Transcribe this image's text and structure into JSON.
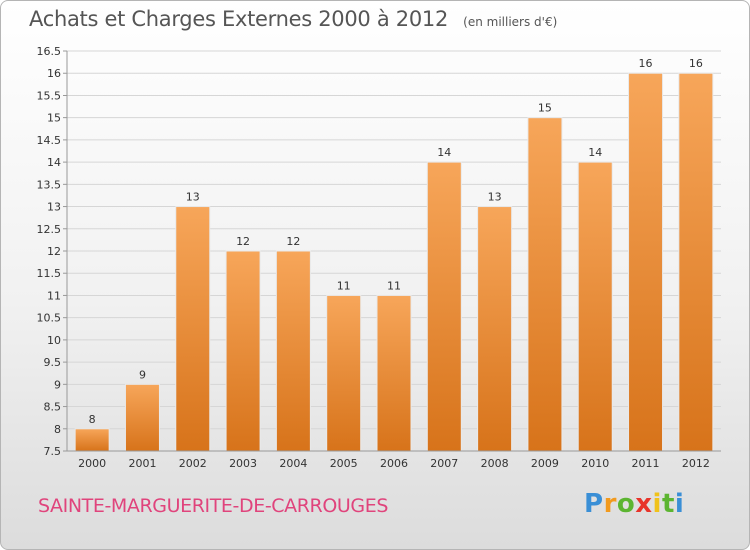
{
  "header": {
    "title": "Achats et Charges Externes 2000 à 2012",
    "unit": "(en milliers d'€)"
  },
  "footer": {
    "commune": "SAINTE-MARGUERITE-DE-CARROUGES",
    "logo_text": "Proxiti"
  },
  "colors": {
    "bar_top": "#f7a65a",
    "bar_bottom": "#d7731a",
    "commune_text": "#e0447c"
  },
  "chart_data": {
    "type": "bar",
    "title": "Achats et Charges Externes 2000 à 2012",
    "subtitle": "(en milliers d'€)",
    "xlabel": "",
    "ylabel": "",
    "categories": [
      "2000",
      "2001",
      "2002",
      "2003",
      "2004",
      "2005",
      "2006",
      "2007",
      "2008",
      "2009",
      "2010",
      "2011",
      "2012"
    ],
    "values": [
      8,
      9,
      13,
      12,
      12,
      11,
      11,
      14,
      13,
      15,
      14,
      16,
      16
    ],
    "ylim": [
      7.5,
      16.5
    ],
    "yticks": [
      7.5,
      8,
      8.5,
      9,
      9.5,
      10,
      10.5,
      11,
      11.5,
      12,
      12.5,
      13,
      13.5,
      14,
      14.5,
      15,
      15.5,
      16,
      16.5
    ],
    "ytick_labels": [
      "7.5",
      "8",
      "8.5",
      "9",
      "9.5",
      "10",
      "10.5",
      "11",
      "11.5",
      "12",
      "12.5",
      "13",
      "13.5",
      "14",
      "14.5",
      "15",
      "15.5",
      "16",
      "16.5"
    ],
    "grid": true,
    "legend": "none"
  }
}
